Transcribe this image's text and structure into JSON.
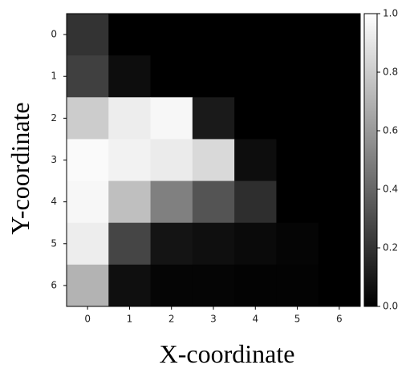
{
  "chart_data": {
    "type": "heatmap",
    "x_label": "X-coordinate",
    "y_label": "Y-coordinate",
    "x_categories": [
      0,
      1,
      2,
      3,
      4,
      5,
      6
    ],
    "y_categories": [
      0,
      1,
      2,
      3,
      4,
      5,
      6
    ],
    "values": [
      [
        0.2,
        0,
        0,
        0,
        0,
        0,
        0
      ],
      [
        0.25,
        0.05,
        0,
        0,
        0,
        0,
        0
      ],
      [
        0.8,
        0.93,
        0.97,
        0.1,
        0,
        0,
        0
      ],
      [
        0.98,
        0.95,
        0.92,
        0.85,
        0.05,
        0,
        0
      ],
      [
        0.97,
        0.75,
        0.5,
        0.33,
        0.18,
        0,
        0
      ],
      [
        0.93,
        0.27,
        0.08,
        0.06,
        0.04,
        0.02,
        0
      ],
      [
        0.7,
        0.06,
        0.02,
        0.02,
        0.01,
        0.01,
        0
      ]
    ],
    "colormap": "gray",
    "clim": [
      0,
      1
    ],
    "cticks": [
      {
        "value": 0,
        "label": "0.0"
      },
      0.2,
      0.4,
      0.6,
      0.8,
      {
        "value": 1,
        "label": "1.0"
      }
    ]
  }
}
